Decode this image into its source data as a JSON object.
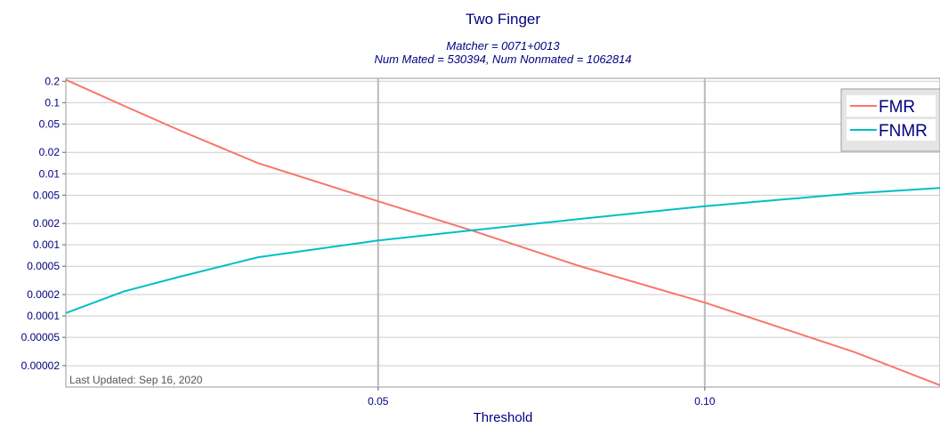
{
  "chart_data": {
    "type": "line",
    "title": "Two Finger",
    "subtitle": [
      "Matcher = 0071+0013",
      "Num Mated = 530394, Num Nonmated = 1062814"
    ],
    "x_label": "Threshold",
    "annotation": "Last Updated: Sep 16, 2020",
    "x": [
      0.0022,
      0.011,
      0.0193,
      0.0316,
      0.05,
      0.0643,
      0.0806,
      0.1,
      0.1229,
      0.136
    ],
    "series": [
      {
        "name": "FMR",
        "color": "#f8766d",
        "values": [
          0.21,
          0.091,
          0.042,
          0.0141,
          0.0041,
          0.0016,
          0.00051,
          0.000154,
          3.1e-05,
          1.06e-05
        ]
      },
      {
        "name": "FNMR",
        "color": "#00bfc4",
        "values": [
          0.00011,
          0.00022,
          0.00035,
          0.00067,
          0.00115,
          0.0016,
          0.0023,
          0.0035,
          0.0053,
          0.0063
        ]
      }
    ],
    "xlim": [
      0.0022,
      0.136
    ],
    "xticks": [
      0.05,
      {
        "value": 0.1,
        "label": "0.10"
      }
    ],
    "ylim": [
      1e-05,
      0.22
    ],
    "yticks": [
      0.2,
      0.1,
      0.05,
      0.02,
      0.01,
      0.005,
      0.002,
      0.001,
      0.0005,
      0.0002,
      0.0001,
      5e-05,
      2e-05
    ],
    "ylog": true,
    "grid": true,
    "legend": "top-right"
  }
}
